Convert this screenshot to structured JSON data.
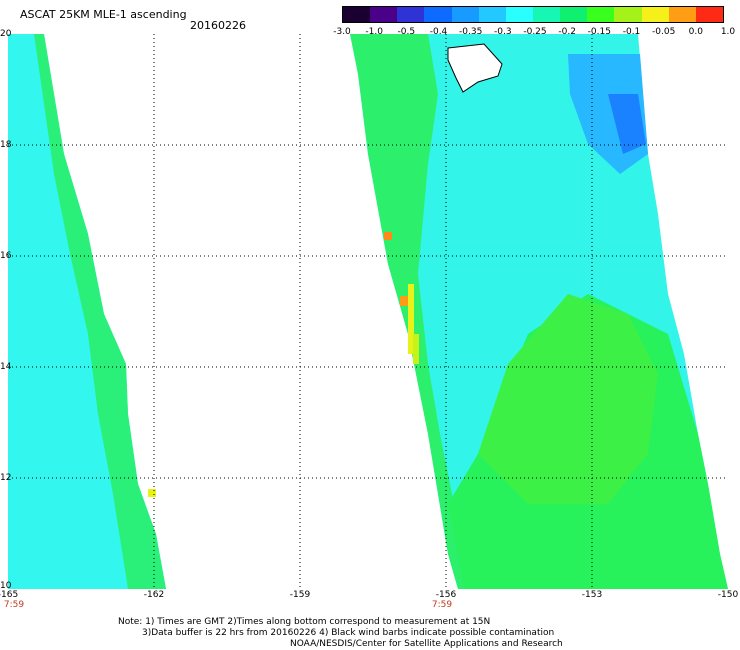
{
  "header": {
    "title": "ASCAT 25KM MLE-1 ascending",
    "date": "20160226"
  },
  "colorbar": {
    "labels": [
      "-3.0",
      "-1.0",
      "-0.5",
      "-0.4",
      "-0.35",
      "-0.3",
      "-0.25",
      "-0.2",
      "-0.15",
      "-0.1",
      "-0.05",
      "0.0",
      "1.0"
    ],
    "colors": [
      "#1a0030",
      "#4a0088",
      "#2f33d6",
      "#0e6bff",
      "#179bff",
      "#22c8ff",
      "#29ffff",
      "#17f7b4",
      "#10f070",
      "#39ff1e",
      "#a5f21b",
      "#f5ef1a",
      "#ff9e14",
      "#ff2a14"
    ]
  },
  "axes": {
    "x_ticks": [
      "-165",
      "-162",
      "-159",
      "-156",
      "-153",
      "-150"
    ],
    "y_ticks": [
      "20",
      "18",
      "16",
      "14",
      "12",
      "10"
    ],
    "time_labels": [
      "7:59",
      "7:59"
    ]
  },
  "notes": {
    "line1": "Note: 1) Times are GMT 2)Times along bottom correspond to measurement at 15N",
    "line2": "3)Data buffer is 22 hrs from 20160226 4) Black wind barbs indicate possible contamination",
    "line3": "NOAA/NESDIS/Center for Satellite Applications and Research"
  },
  "map": {
    "lon_range": [
      -165,
      -150
    ],
    "lat_range": [
      10,
      20
    ],
    "colors": {
      "cyan": "#33ffee",
      "green": "#22f07a",
      "bright_green": "#2eff24",
      "blue": "#1aa6ff",
      "yellow": "#e8f21a",
      "orange": "#ff8a1a"
    }
  }
}
